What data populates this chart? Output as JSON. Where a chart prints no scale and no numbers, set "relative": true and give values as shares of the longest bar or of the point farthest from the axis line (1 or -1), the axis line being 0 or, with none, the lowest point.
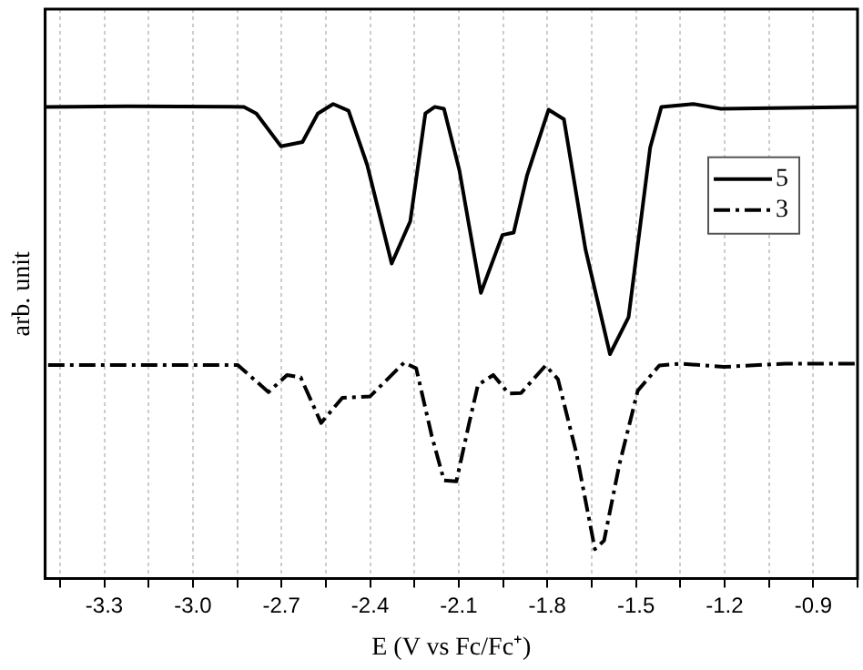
{
  "chart_data": {
    "type": "line",
    "relative": true,
    "xlabel": "E (V vs Fc/Fc⁺)",
    "ylabel": "arb. unit",
    "xlim": [
      -3.5,
      -0.75
    ],
    "xticks": [
      {
        "value": -3.45,
        "label": null
      },
      -3.3,
      {
        "value": -3.15,
        "label": null
      },
      {
        "value": -3.0,
        "label": "-3.0"
      },
      {
        "value": -2.85,
        "label": null
      },
      -2.7,
      {
        "value": -2.55,
        "label": null
      },
      -2.4,
      {
        "value": -2.25,
        "label": null
      },
      -2.1,
      {
        "value": -1.95,
        "label": null
      },
      -1.8,
      {
        "value": -1.65,
        "label": null
      },
      -1.5,
      {
        "value": -1.35,
        "label": null
      },
      -1.2,
      {
        "value": -1.05,
        "label": null
      },
      -0.9,
      {
        "value": -0.75,
        "label": null
      }
    ],
    "grid": "x",
    "legend": "right",
    "marker": "none",
    "series": [
      {
        "name": "5",
        "color": "#000000",
        "line_style": "solid",
        "x": [
          -3.5,
          -3.222,
          -2.827,
          -2.785,
          -2.702,
          -2.629,
          -2.577,
          -2.525,
          -2.473,
          -2.41,
          -2.327,
          -2.264,
          -2.213,
          -2.181,
          -2.15,
          -2.098,
          -2.025,
          -1.952,
          -1.914,
          -1.869,
          -1.796,
          -1.744,
          -1.671,
          -1.588,
          -1.525,
          -1.452,
          -1.414,
          -1.306,
          -1.213,
          -0.75
        ],
        "values": [
          0.994,
          0.995,
          0.994,
          0.98,
          0.911,
          0.92,
          0.98,
          1.0,
          0.986,
          0.872,
          0.664,
          0.753,
          0.98,
          0.994,
          0.99,
          0.861,
          0.602,
          0.724,
          0.729,
          0.849,
          0.988,
          0.968,
          0.694,
          0.473,
          0.551,
          0.908,
          0.994,
          1.0,
          0.99,
          0.994
        ]
      },
      {
        "name": "3",
        "color": "#000000",
        "line_style": "dashed",
        "x": [
          -3.49,
          -2.848,
          -2.744,
          -2.681,
          -2.635,
          -2.566,
          -2.494,
          -2.4,
          -2.285,
          -2.244,
          -2.191,
          -2.15,
          -2.108,
          -2.066,
          -2.035,
          -1.983,
          -1.931,
          -1.889,
          -1.806,
          -1.764,
          -1.702,
          -1.639,
          -1.608,
          -1.556,
          -1.494,
          -1.421,
          -1.348,
          -1.203,
          -0.994,
          -0.75
        ],
        "values": [
          0.45,
          0.45,
          0.393,
          0.429,
          0.424,
          0.328,
          0.381,
          0.384,
          0.455,
          0.443,
          0.3,
          0.207,
          0.205,
          0.324,
          0.408,
          0.429,
          0.39,
          0.391,
          0.449,
          0.42,
          0.265,
          0.062,
          0.08,
          0.241,
          0.396,
          0.449,
          0.453,
          0.446,
          0.453,
          0.453
        ]
      }
    ]
  }
}
